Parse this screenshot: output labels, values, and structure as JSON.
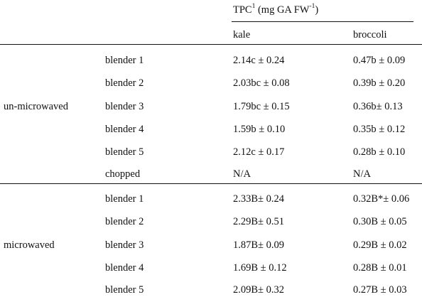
{
  "header": {
    "tpc_prefix": "TPC",
    "tpc_sup": "1",
    "tpc_unit_prefix": "(mg GA FW",
    "tpc_unit_sup": "-1",
    "tpc_unit_suffix": ")",
    "col_kale": "kale",
    "col_broccoli": "broccoli"
  },
  "groups": [
    {
      "label": "un-microwaved",
      "rows": [
        {
          "method": "blender 1",
          "kale": "2.14c ± 0.24",
          "broccoli": "0.47b ± 0.09"
        },
        {
          "method": "blender 2",
          "kale": "2.03bc ± 0.08",
          "broccoli": "0.39b ± 0.20"
        },
        {
          "method": "blender 3",
          "kale": "1.79bc ± 0.15",
          "broccoli": "0.36b± 0.13"
        },
        {
          "method": "blender 4",
          "kale": "1.59b ± 0.10",
          "broccoli": "0.35b ± 0.12"
        },
        {
          "method": "blender 5",
          "kale": "2.12c ± 0.17",
          "broccoli": "0.28b ± 0.10"
        },
        {
          "method": "chopped",
          "kale": "N/A",
          "broccoli": "N/A"
        }
      ]
    },
    {
      "label": "microwaved",
      "rows": [
        {
          "method": "blender 1",
          "kale": "2.33B± 0.24",
          "broccoli": "0.32B*± 0.06"
        },
        {
          "method": "blender 2",
          "kale": "2.29B± 0.51",
          "broccoli": "0.30B ± 0.05"
        },
        {
          "method": "blender 3",
          "kale": "1.87B± 0.09",
          "broccoli": "0.29B ± 0.02"
        },
        {
          "method": "blender 4",
          "kale": "1.69B ± 0.12",
          "broccoli": "0.28B ± 0.01"
        },
        {
          "method": "blender 5",
          "kale": "2.09B± 0.32",
          "broccoli": "0.27B ± 0.03"
        }
      ]
    }
  ]
}
